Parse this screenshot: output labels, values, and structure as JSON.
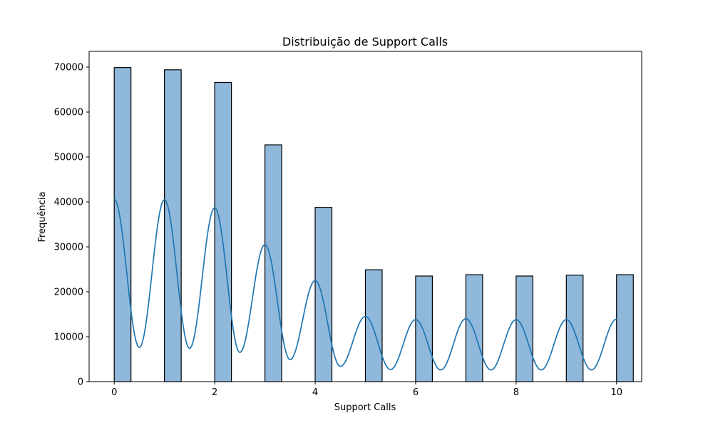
{
  "chart_data": {
    "type": "bar",
    "title": "Distribuição de Support Calls",
    "xlabel": "Support Calls",
    "ylabel": "Frequência",
    "xlim": [
      -0.5,
      10.5
    ],
    "ylim": [
      0,
      73500
    ],
    "xticks": [
      0,
      2,
      4,
      6,
      8,
      10
    ],
    "yticks": [
      0,
      10000,
      20000,
      30000,
      40000,
      50000,
      60000,
      70000
    ],
    "bin_width": 0.333,
    "bars": [
      {
        "x": 0,
        "value": 69900
      },
      {
        "x": 1,
        "value": 69400
      },
      {
        "x": 2,
        "value": 66600
      },
      {
        "x": 3,
        "value": 52700
      },
      {
        "x": 4,
        "value": 38800
      },
      {
        "x": 5,
        "value": 24900
      },
      {
        "x": 6,
        "value": 23500
      },
      {
        "x": 7,
        "value": 23800
      },
      {
        "x": 8,
        "value": 23500
      },
      {
        "x": 9,
        "value": 23700
      },
      {
        "x": 10,
        "value": 23800
      }
    ],
    "kde": {
      "peaks": [
        40600,
        40500,
        38700,
        30500,
        22500,
        14500,
        13800,
        14000,
        13800,
        13800,
        13900
      ],
      "troughs": [
        7600,
        7400,
        6500,
        4900,
        3400,
        2700,
        2600,
        2600,
        2600,
        2600
      ]
    },
    "grid": false,
    "colors": {
      "bar_fill": "#8fb8da",
      "bar_edge": "#000000",
      "kde_line": "#1f77b4"
    }
  }
}
